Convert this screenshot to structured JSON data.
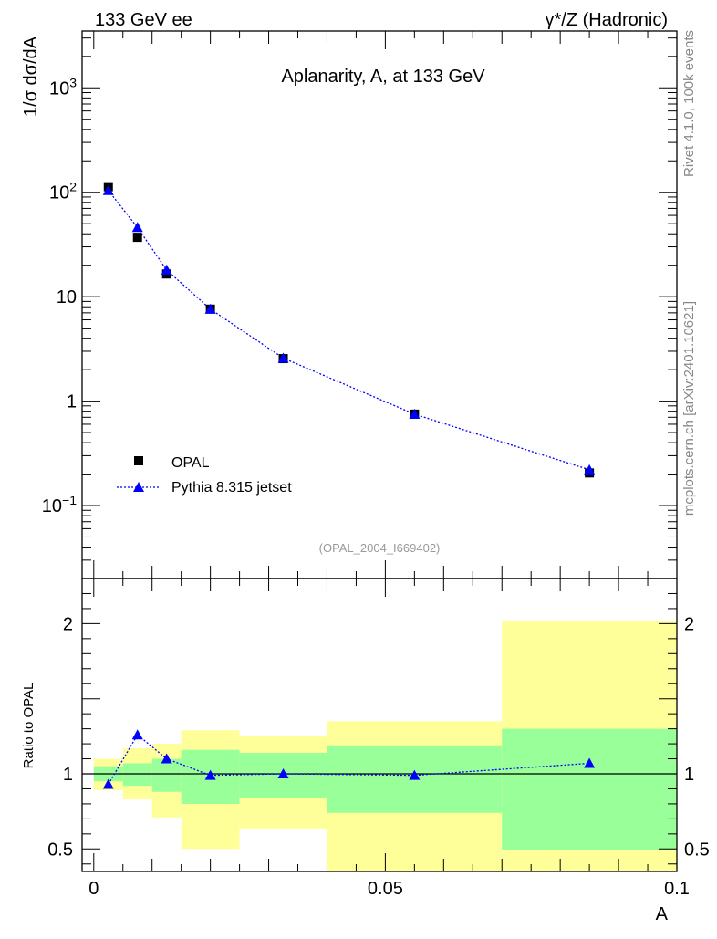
{
  "header": {
    "left_label": "133 GeV ee",
    "right_label": "γ*/Z (Hadronic)"
  },
  "side_labels": {
    "top": "Rivet 4.1.0,  100k events",
    "bottom": "mcplots.cern.ch [arXiv:2401.10621]"
  },
  "colors": {
    "data_marker": "#000000",
    "mc_line": "#0000ff",
    "band_inner": "#99ff99",
    "band_outer": "#ffff99",
    "watermark": "#999999"
  },
  "chart_data": [
    {
      "type": "scatter",
      "title": "Aplanarity, A, at 133 GeV",
      "ylabel": "1/σ  dσ/dA",
      "xlabel": "",
      "xlim": [
        -0.002,
        0.1
      ],
      "ylim": [
        0.02,
        3500
      ],
      "yscale": "log",
      "yticks": [
        {
          "value": 0.1,
          "label": "10",
          "exp": "−1"
        },
        {
          "value": 1,
          "label": "1",
          "exp": ""
        },
        {
          "value": 10,
          "label": "10",
          "exp": ""
        },
        {
          "value": 100,
          "label": "10",
          "exp": "2"
        },
        {
          "value": 1000,
          "label": "10",
          "exp": "3"
        }
      ],
      "watermark": "(OPAL_2004_I669402)",
      "legend": {
        "position": "bottom-left",
        "entries": [
          "OPAL",
          "Pythia 8.315 jetset"
        ]
      },
      "series": [
        {
          "name": "OPAL",
          "marker": "square",
          "x": [
            0.0025,
            0.0075,
            0.0125,
            0.02,
            0.0325,
            0.055,
            0.085
          ],
          "y": [
            113,
            37,
            16.5,
            7.6,
            2.55,
            0.75,
            0.205
          ]
        },
        {
          "name": "Pythia 8.315 jetset",
          "marker": "triangle",
          "x": [
            0.0025,
            0.0075,
            0.0125,
            0.02,
            0.0325,
            0.055,
            0.085
          ],
          "y": [
            104,
            46,
            18,
            7.6,
            2.58,
            0.75,
            0.22
          ]
        }
      ]
    },
    {
      "type": "line",
      "title": "",
      "ylabel": "Ratio to OPAL",
      "xlabel": "A",
      "xlim": [
        -0.002,
        0.1
      ],
      "ylim": [
        0.35,
        2.3
      ],
      "xticks": [
        {
          "value": 0,
          "label": "0"
        },
        {
          "value": 0.05,
          "label": "0.05"
        },
        {
          "value": 0.1,
          "label": "0.1"
        }
      ],
      "yticks": [
        {
          "value": 0.5,
          "label": "0.5"
        },
        {
          "value": 1,
          "label": "1"
        },
        {
          "value": 2,
          "label": "2"
        }
      ],
      "bins": [
        {
          "lo": 0.0,
          "hi": 0.005,
          "inner": [
            0.95,
            1.05
          ],
          "outer": [
            0.89,
            1.1
          ]
        },
        {
          "lo": 0.005,
          "hi": 0.01,
          "inner": [
            0.92,
            1.07
          ],
          "outer": [
            0.83,
            1.17
          ]
        },
        {
          "lo": 0.01,
          "hi": 0.015,
          "inner": [
            0.88,
            1.1
          ],
          "outer": [
            0.71,
            1.2
          ]
        },
        {
          "lo": 0.015,
          "hi": 0.025,
          "inner": [
            0.8,
            1.16
          ],
          "outer": [
            0.5,
            1.29
          ]
        },
        {
          "lo": 0.025,
          "hi": 0.04,
          "inner": [
            0.84,
            1.14
          ],
          "outer": [
            0.63,
            1.25
          ]
        },
        {
          "lo": 0.04,
          "hi": 0.07,
          "inner": [
            0.74,
            1.19
          ],
          "outer": [
            0.35,
            1.35
          ]
        },
        {
          "lo": 0.07,
          "hi": 0.1,
          "inner": [
            0.49,
            1.3
          ],
          "outer": [
            0.35,
            2.02
          ]
        }
      ],
      "series": [
        {
          "name": "Pythia 8.315 jetset",
          "marker": "triangle",
          "x": [
            0.0025,
            0.0075,
            0.0125,
            0.02,
            0.0325,
            0.055,
            0.085
          ],
          "y": [
            0.93,
            1.26,
            1.1,
            0.99,
            1.0,
            0.99,
            1.07
          ]
        }
      ]
    }
  ]
}
